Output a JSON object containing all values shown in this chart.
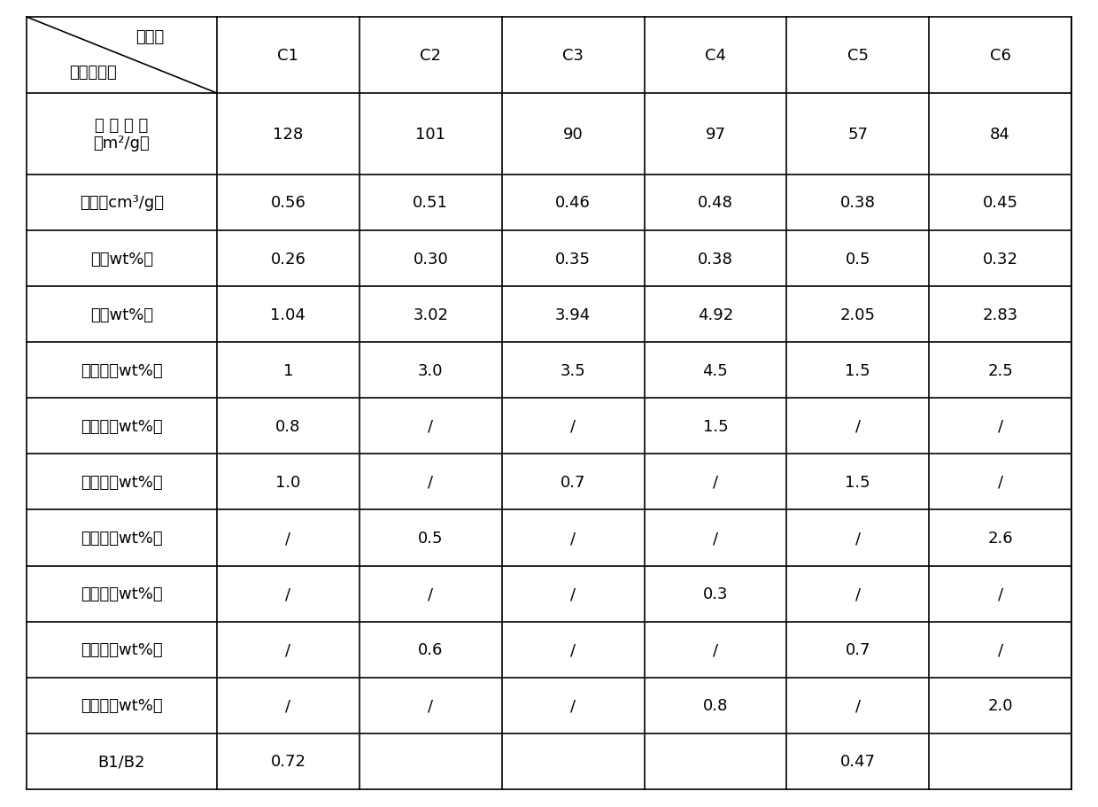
{
  "header_row": [
    "C1",
    "C2",
    "C3",
    "C4",
    "C5",
    "C6"
  ],
  "corner_top": "催化剂",
  "corner_bottom": "组成及性质",
  "rows": [
    {
      "label": "比 表 面 积\n（m²/g）",
      "values": [
        "128",
        "101",
        "90",
        "97",
        "57",
        "84"
      ],
      "tall": true
    },
    {
      "label": "孔容（cm³/g）",
      "values": [
        "0.56",
        "0.51",
        "0.46",
        "0.48",
        "0.38",
        "0.45"
      ],
      "tall": false
    },
    {
      "label": "钯（wt%）",
      "values": [
        "0.26",
        "0.30",
        "0.35",
        "0.38",
        "0.5",
        "0.32"
      ],
      "tall": false
    },
    {
      "label": "镍（wt%）",
      "values": [
        "1.04",
        "3.02",
        "3.94",
        "4.92",
        "2.05",
        "2.83"
      ],
      "tall": false
    },
    {
      "label": "氧化钼（wt%）",
      "values": [
        "1",
        "3.0",
        "3.5",
        "4.5",
        "1.5",
        "2.5"
      ],
      "tall": false
    },
    {
      "label": "氧化锂（wt%）",
      "values": [
        "0.8",
        "/",
        "/",
        "1.5",
        "/",
        "/"
      ],
      "tall": false
    },
    {
      "label": "氧化钾（wt%）",
      "values": [
        "1.0",
        "/",
        "0.7",
        "/",
        "1.5",
        "/"
      ],
      "tall": false
    },
    {
      "label": "氧化钙（wt%）",
      "values": [
        "/",
        "0.5",
        "/",
        "/",
        "/",
        "2.6"
      ],
      "tall": false
    },
    {
      "label": "氧化镁（wt%）",
      "values": [
        "/",
        "/",
        "/",
        "0.3",
        "/",
        "/"
      ],
      "tall": false
    },
    {
      "label": "氧化镧（wt%）",
      "values": [
        "/",
        "0.6",
        "/",
        "/",
        "0.7",
        "/"
      ],
      "tall": false
    },
    {
      "label": "氧化铈（wt%）",
      "values": [
        "/",
        "/",
        "/",
        "0.8",
        "/",
        "2.0"
      ],
      "tall": false
    },
    {
      "label": "B1/B2",
      "values": [
        "0.72",
        "",
        "",
        "",
        "0.47",
        ""
      ],
      "tall": false
    }
  ],
  "bg_color": "#ffffff",
  "text_color": "#000000",
  "line_color": "#000000",
  "font_size": 13,
  "header_font_size": 13
}
